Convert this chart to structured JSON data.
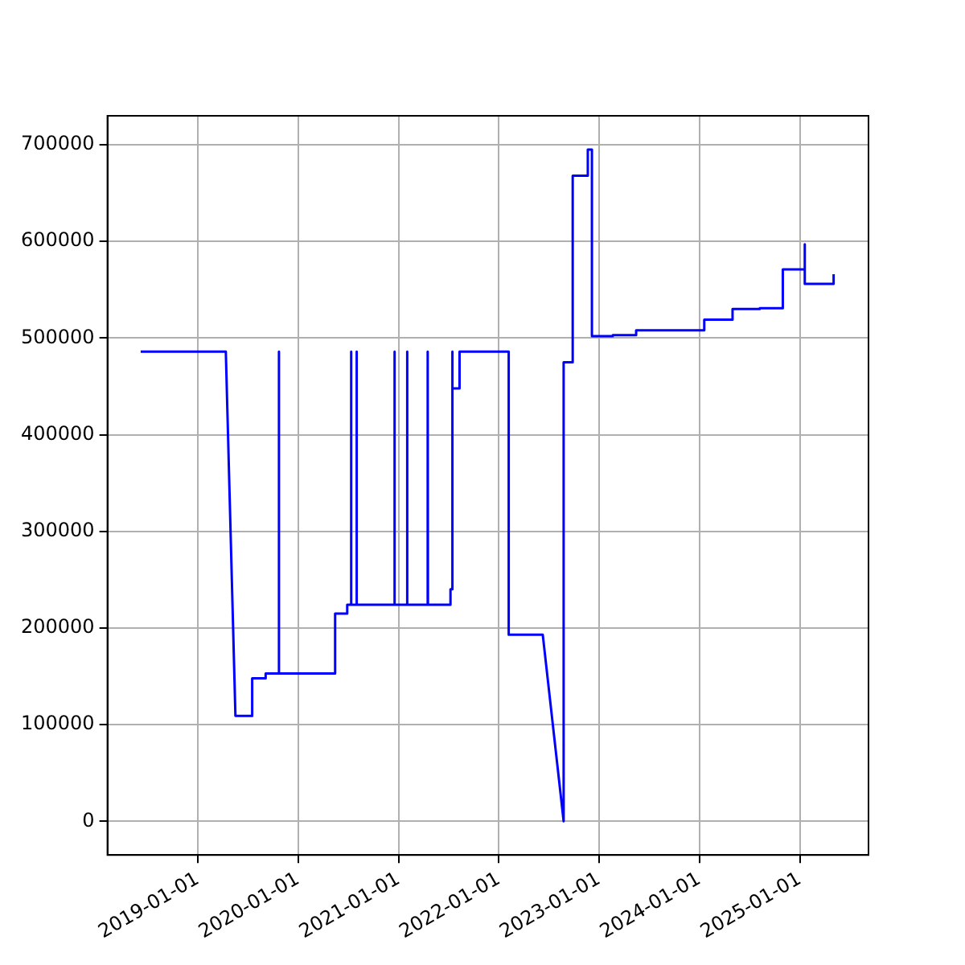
{
  "chart_data": {
    "type": "line",
    "color": "#0000ff",
    "grid": true,
    "marker": "none",
    "line_style": "solid",
    "x": [
      "2018-06-07",
      "2019-04-13",
      "2019-05-18",
      "2019-07-18",
      "2019-07-18",
      "2019-09-05",
      "2019-09-05",
      "2019-10-23",
      "2019-10-23",
      "2019-10-24",
      "2020-05-15",
      "2020-05-15",
      "2020-06-28",
      "2020-06-28",
      "2020-07-12",
      "2020-07-12",
      "2020-07-13",
      "2020-08-01",
      "2020-08-01",
      "2020-08-02",
      "2020-12-17",
      "2020-12-17",
      "2020-12-18",
      "2021-02-01",
      "2021-02-01",
      "2021-02-02",
      "2021-04-17",
      "2021-04-17",
      "2021-04-18",
      "2021-07-09",
      "2021-07-09",
      "2021-07-15",
      "2021-07-15",
      "2021-07-17",
      "2021-08-11",
      "2021-08-11",
      "2022-02-06",
      "2022-02-06",
      "2022-06-10",
      "2022-08-25",
      "2022-08-25",
      "2022-09-27",
      "2022-09-27",
      "2022-11-21",
      "2022-11-21",
      "2022-12-06",
      "2022-12-06",
      "2023-02-20",
      "2023-02-20",
      "2023-05-16",
      "2023-05-16",
      "2024-01-19",
      "2024-01-19",
      "2024-05-01",
      "2024-05-01",
      "2024-08-08",
      "2024-08-08",
      "2024-10-31",
      "2024-10-31",
      "2025-01-19",
      "2025-01-19",
      "2025-01-19",
      "2025-05-04",
      "2025-05-04"
    ],
    "values": [
      486000,
      486000,
      109000,
      109000,
      148000,
      148000,
      153000,
      153000,
      486000,
      153000,
      153000,
      215000,
      215000,
      224000,
      224000,
      486000,
      224000,
      224000,
      486000,
      224000,
      224000,
      486000,
      224000,
      224000,
      486000,
      224000,
      224000,
      486000,
      224000,
      224000,
      240000,
      240000,
      486000,
      448000,
      448000,
      486000,
      486000,
      193000,
      193000,
      0,
      475000,
      475000,
      668000,
      668000,
      695000,
      695000,
      502000,
      502000,
      503000,
      503000,
      508000,
      508000,
      519000,
      519000,
      530000,
      530000,
      531000,
      531000,
      571000,
      571000,
      597000,
      556000,
      556000,
      566000
    ],
    "xlim": [
      "2018-02-06",
      "2025-09-08"
    ],
    "xticks": [
      "2019-01-01",
      "2020-01-01",
      "2021-01-01",
      "2022-01-01",
      "2023-01-01",
      "2024-01-01",
      "2025-01-01"
    ],
    "ylim": [
      -35000,
      730000
    ],
    "yticks": [
      0,
      100000,
      200000,
      300000,
      400000,
      500000,
      600000,
      700000
    ]
  }
}
